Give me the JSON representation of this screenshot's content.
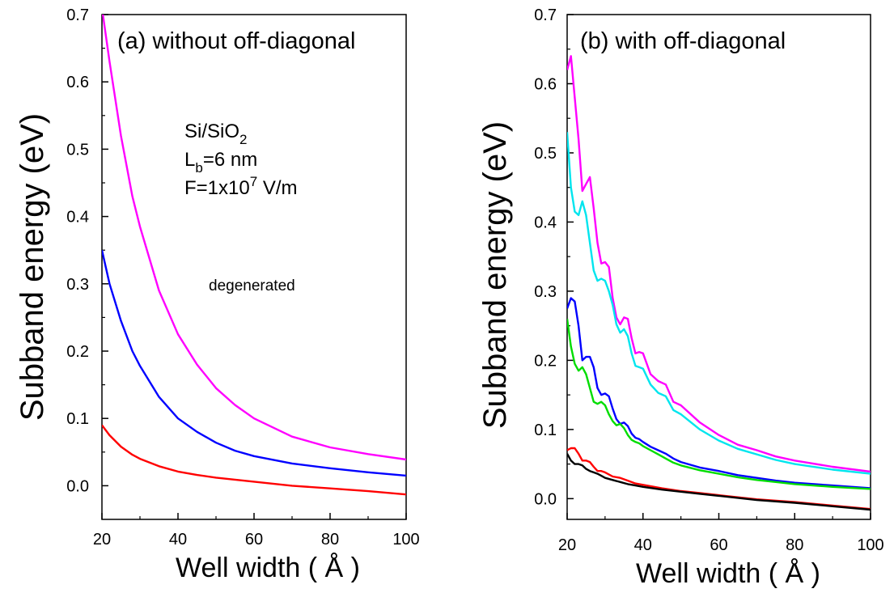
{
  "chart_data": [
    {
      "type": "line",
      "title": "(a) without off-diagonal",
      "xlabel": "Well width ( Å )",
      "ylabel": "Subband energy (eV)",
      "xlim": [
        20,
        100
      ],
      "ylim": [
        -0.05,
        0.7
      ],
      "xticks": [
        20,
        40,
        60,
        80,
        100
      ],
      "yticks": [
        0.0,
        0.1,
        0.2,
        0.3,
        0.4,
        0.5,
        0.6,
        0.7
      ],
      "ytick_labels": [
        "0.0",
        "0.1",
        "0.2",
        "0.3",
        "0.4",
        "0.5",
        "0.6",
        "0.7"
      ],
      "annotations": {
        "material": "Si/SiO",
        "material_sub": "2",
        "lb_main": "L",
        "lb_sub": "b",
        "lb_rest": "=6 nm",
        "field_main": "F=1x10",
        "field_sup": "7",
        "field_rest": " V/m",
        "degenerated": "degenerated"
      },
      "series": [
        {
          "color": "#ff00ff",
          "x": [
            20,
            22,
            25,
            28,
            30,
            35,
            40,
            45,
            50,
            55,
            60,
            70,
            80,
            90,
            100
          ],
          "y": [
            0.71,
            0.63,
            0.52,
            0.43,
            0.385,
            0.29,
            0.225,
            0.18,
            0.145,
            0.12,
            0.1,
            0.073,
            0.057,
            0.047,
            0.039
          ]
        },
        {
          "color": "#0000ff",
          "x": [
            20,
            22,
            25,
            28,
            30,
            35,
            40,
            45,
            50,
            55,
            60,
            70,
            80,
            90,
            100
          ],
          "y": [
            0.35,
            0.3,
            0.245,
            0.2,
            0.178,
            0.132,
            0.1,
            0.08,
            0.064,
            0.052,
            0.044,
            0.033,
            0.026,
            0.02,
            0.015
          ]
        },
        {
          "color": "#ff0000",
          "x": [
            20,
            22,
            25,
            28,
            30,
            35,
            40,
            45,
            50,
            55,
            60,
            70,
            80,
            90,
            100
          ],
          "y": [
            0.09,
            0.075,
            0.058,
            0.046,
            0.04,
            0.029,
            0.021,
            0.016,
            0.012,
            0.009,
            0.006,
            0.0,
            -0.004,
            -0.008,
            -0.013
          ]
        }
      ]
    },
    {
      "type": "line",
      "title": "(b) with off-diagonal",
      "xlabel": "Well width ( Å )",
      "ylabel": "Subband energy (eV)",
      "xlim": [
        20,
        100
      ],
      "ylim": [
        -0.03,
        0.7
      ],
      "xticks": [
        20,
        40,
        60,
        80,
        100
      ],
      "yticks": [
        0.0,
        0.1,
        0.2,
        0.3,
        0.4,
        0.5,
        0.6,
        0.7
      ],
      "ytick_labels": [
        "0.0",
        "0.1",
        "0.2",
        "0.3",
        "0.4",
        "0.5",
        "0.6",
        "0.7"
      ],
      "series": [
        {
          "color": "#ff00ff",
          "x": [
            20,
            21,
            22,
            23,
            24,
            25,
            26,
            27,
            28,
            29,
            30,
            31,
            32,
            33,
            34,
            35,
            36,
            37,
            38,
            39,
            40,
            42,
            44,
            46,
            48,
            50,
            55,
            60,
            65,
            70,
            75,
            80,
            90,
            100
          ],
          "y": [
            0.62,
            0.64,
            0.58,
            0.52,
            0.445,
            0.455,
            0.465,
            0.42,
            0.37,
            0.34,
            0.342,
            0.335,
            0.29,
            0.262,
            0.252,
            0.262,
            0.26,
            0.232,
            0.21,
            0.212,
            0.21,
            0.18,
            0.17,
            0.165,
            0.14,
            0.135,
            0.11,
            0.092,
            0.078,
            0.07,
            0.061,
            0.055,
            0.046,
            0.039
          ]
        },
        {
          "color": "#00e5ee",
          "x": [
            20,
            21,
            22,
            23,
            24,
            25,
            26,
            27,
            28,
            29,
            30,
            31,
            32,
            33,
            34,
            35,
            36,
            37,
            38,
            39,
            40,
            42,
            44,
            46,
            48,
            50,
            55,
            60,
            65,
            70,
            75,
            80,
            90,
            100
          ],
          "y": [
            0.53,
            0.45,
            0.415,
            0.41,
            0.43,
            0.41,
            0.37,
            0.33,
            0.315,
            0.318,
            0.315,
            0.3,
            0.28,
            0.252,
            0.24,
            0.245,
            0.235,
            0.21,
            0.192,
            0.19,
            0.188,
            0.165,
            0.153,
            0.148,
            0.128,
            0.122,
            0.1,
            0.084,
            0.072,
            0.064,
            0.056,
            0.05,
            0.042,
            0.036
          ]
        },
        {
          "color": "#0000ff",
          "x": [
            20,
            21,
            22,
            23,
            24,
            25,
            26,
            27,
            28,
            29,
            30,
            31,
            32,
            33,
            34,
            35,
            36,
            37,
            38,
            39,
            40,
            42,
            44,
            46,
            48,
            50,
            55,
            60,
            65,
            70,
            75,
            80,
            90,
            100
          ],
          "y": [
            0.275,
            0.29,
            0.285,
            0.25,
            0.2,
            0.205,
            0.205,
            0.19,
            0.16,
            0.15,
            0.152,
            0.148,
            0.13,
            0.115,
            0.108,
            0.11,
            0.105,
            0.094,
            0.088,
            0.086,
            0.082,
            0.075,
            0.07,
            0.065,
            0.058,
            0.053,
            0.045,
            0.04,
            0.034,
            0.03,
            0.026,
            0.023,
            0.019,
            0.015
          ]
        },
        {
          "color": "#00dd00",
          "x": [
            20,
            21,
            22,
            23,
            24,
            25,
            26,
            27,
            28,
            29,
            30,
            31,
            32,
            33,
            34,
            35,
            36,
            37,
            38,
            39,
            40,
            42,
            44,
            46,
            48,
            50,
            55,
            60,
            65,
            70,
            75,
            80,
            90,
            100
          ],
          "y": [
            0.26,
            0.22,
            0.195,
            0.185,
            0.19,
            0.18,
            0.16,
            0.14,
            0.137,
            0.14,
            0.135,
            0.122,
            0.112,
            0.106,
            0.108,
            0.102,
            0.092,
            0.085,
            0.082,
            0.08,
            0.076,
            0.07,
            0.064,
            0.058,
            0.052,
            0.048,
            0.041,
            0.036,
            0.031,
            0.027,
            0.024,
            0.021,
            0.017,
            0.014
          ]
        },
        {
          "color": "#ff0000",
          "x": [
            20,
            21,
            22,
            23,
            24,
            25,
            26,
            27,
            28,
            29,
            30,
            32,
            34,
            36,
            38,
            40,
            45,
            50,
            55,
            60,
            70,
            80,
            90,
            100
          ],
          "y": [
            0.07,
            0.073,
            0.073,
            0.065,
            0.055,
            0.055,
            0.053,
            0.046,
            0.04,
            0.04,
            0.038,
            0.032,
            0.03,
            0.026,
            0.022,
            0.02,
            0.015,
            0.011,
            0.008,
            0.005,
            -0.001,
            -0.005,
            -0.01,
            -0.015
          ]
        },
        {
          "color": "#000000",
          "x": [
            20,
            21,
            22,
            23,
            24,
            25,
            26,
            27,
            28,
            29,
            30,
            32,
            34,
            36,
            38,
            40,
            45,
            50,
            55,
            60,
            70,
            80,
            90,
            100
          ],
          "y": [
            0.065,
            0.055,
            0.05,
            0.05,
            0.048,
            0.043,
            0.04,
            0.038,
            0.036,
            0.033,
            0.03,
            0.027,
            0.024,
            0.021,
            0.019,
            0.017,
            0.013,
            0.01,
            0.007,
            0.004,
            -0.002,
            -0.006,
            -0.011,
            -0.016
          ]
        }
      ]
    }
  ]
}
